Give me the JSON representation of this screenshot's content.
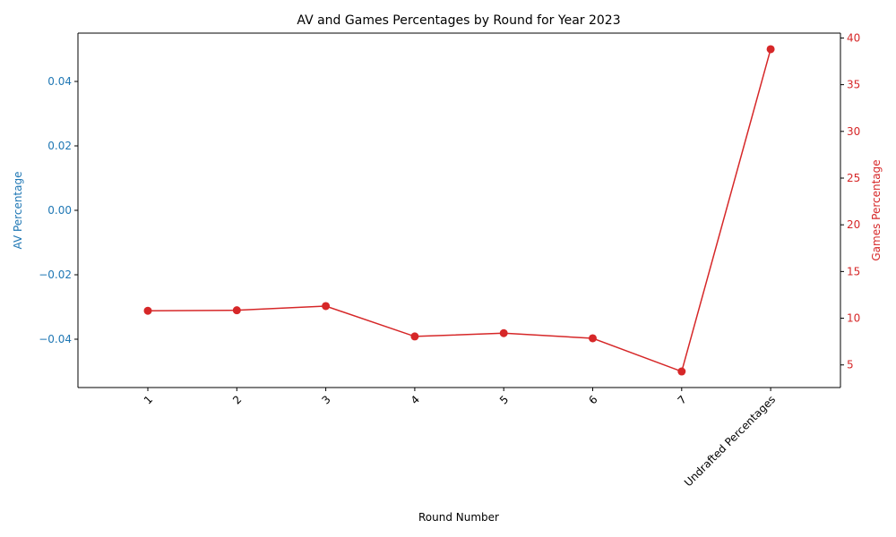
{
  "chart_data": {
    "type": "line",
    "title": "AV and Games Percentages by Round for Year 2023",
    "xlabel": "Round Number",
    "ylabel_left": "AV Percentage",
    "ylabel_right": "Games Percentage",
    "categories": [
      "1",
      "2",
      "3",
      "4",
      "5",
      "6",
      "7",
      "Undrafted Percentages"
    ],
    "series": [
      {
        "axis": "right",
        "color": "#d62728",
        "values": [
          10.8,
          10.85,
          11.3,
          8.05,
          8.4,
          7.85,
          4.3,
          38.8
        ]
      }
    ],
    "left_axis": {
      "color": "#1f77b4",
      "ylim": [
        -0.055,
        0.055
      ],
      "ticks": [
        -0.04,
        -0.02,
        0.0,
        0.02,
        0.04
      ],
      "tick_labels": [
        "−0.04",
        "−0.02",
        "0.00",
        "0.02",
        "0.04"
      ]
    },
    "right_axis": {
      "color": "#d62728",
      "ylim": [
        2.58,
        40.52
      ],
      "ticks": [
        5,
        10,
        15,
        20,
        25,
        30,
        35,
        40
      ],
      "tick_labels": [
        "5",
        "10",
        "15",
        "20",
        "25",
        "30",
        "35",
        "40"
      ]
    },
    "grid": false,
    "legend": "none"
  }
}
